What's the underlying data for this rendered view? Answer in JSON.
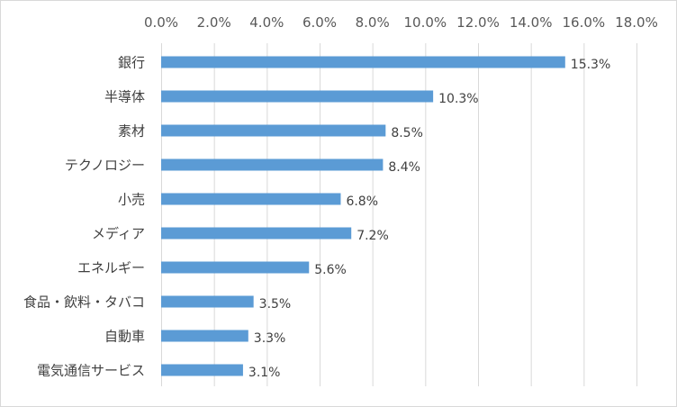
{
  "chart_data": {
    "type": "bar",
    "orientation": "horizontal",
    "title": "",
    "xlabel": "",
    "ylabel": "",
    "categories": [
      "銀行",
      "半導体",
      "素材",
      "テクノロジー",
      "小売",
      "メディア",
      "エネルギー",
      "食品・飲料・タバコ",
      "自動車",
      "電気通信サービス"
    ],
    "values": [
      15.3,
      10.3,
      8.5,
      8.4,
      6.8,
      7.2,
      5.6,
      3.5,
      3.3,
      3.1
    ],
    "data_labels": [
      "15.3%",
      "10.3%",
      "8.5%",
      "8.4%",
      "6.8%",
      "7.2%",
      "5.6%",
      "3.5%",
      "3.3%",
      "3.1%"
    ],
    "xlim": [
      0,
      18
    ],
    "x_ticks": [
      0,
      2,
      4,
      6,
      8,
      10,
      12,
      14,
      16,
      18
    ],
    "x_tick_labels": [
      "0.0%",
      "2.0%",
      "4.0%",
      "6.0%",
      "8.0%",
      "10.0%",
      "12.0%",
      "14.0%",
      "16.0%",
      "18.0%"
    ],
    "x_axis_position": "top",
    "grid": true,
    "legend": "none",
    "bar_color": "#5b9bd5",
    "grid_color": "#d9d9d9"
  }
}
